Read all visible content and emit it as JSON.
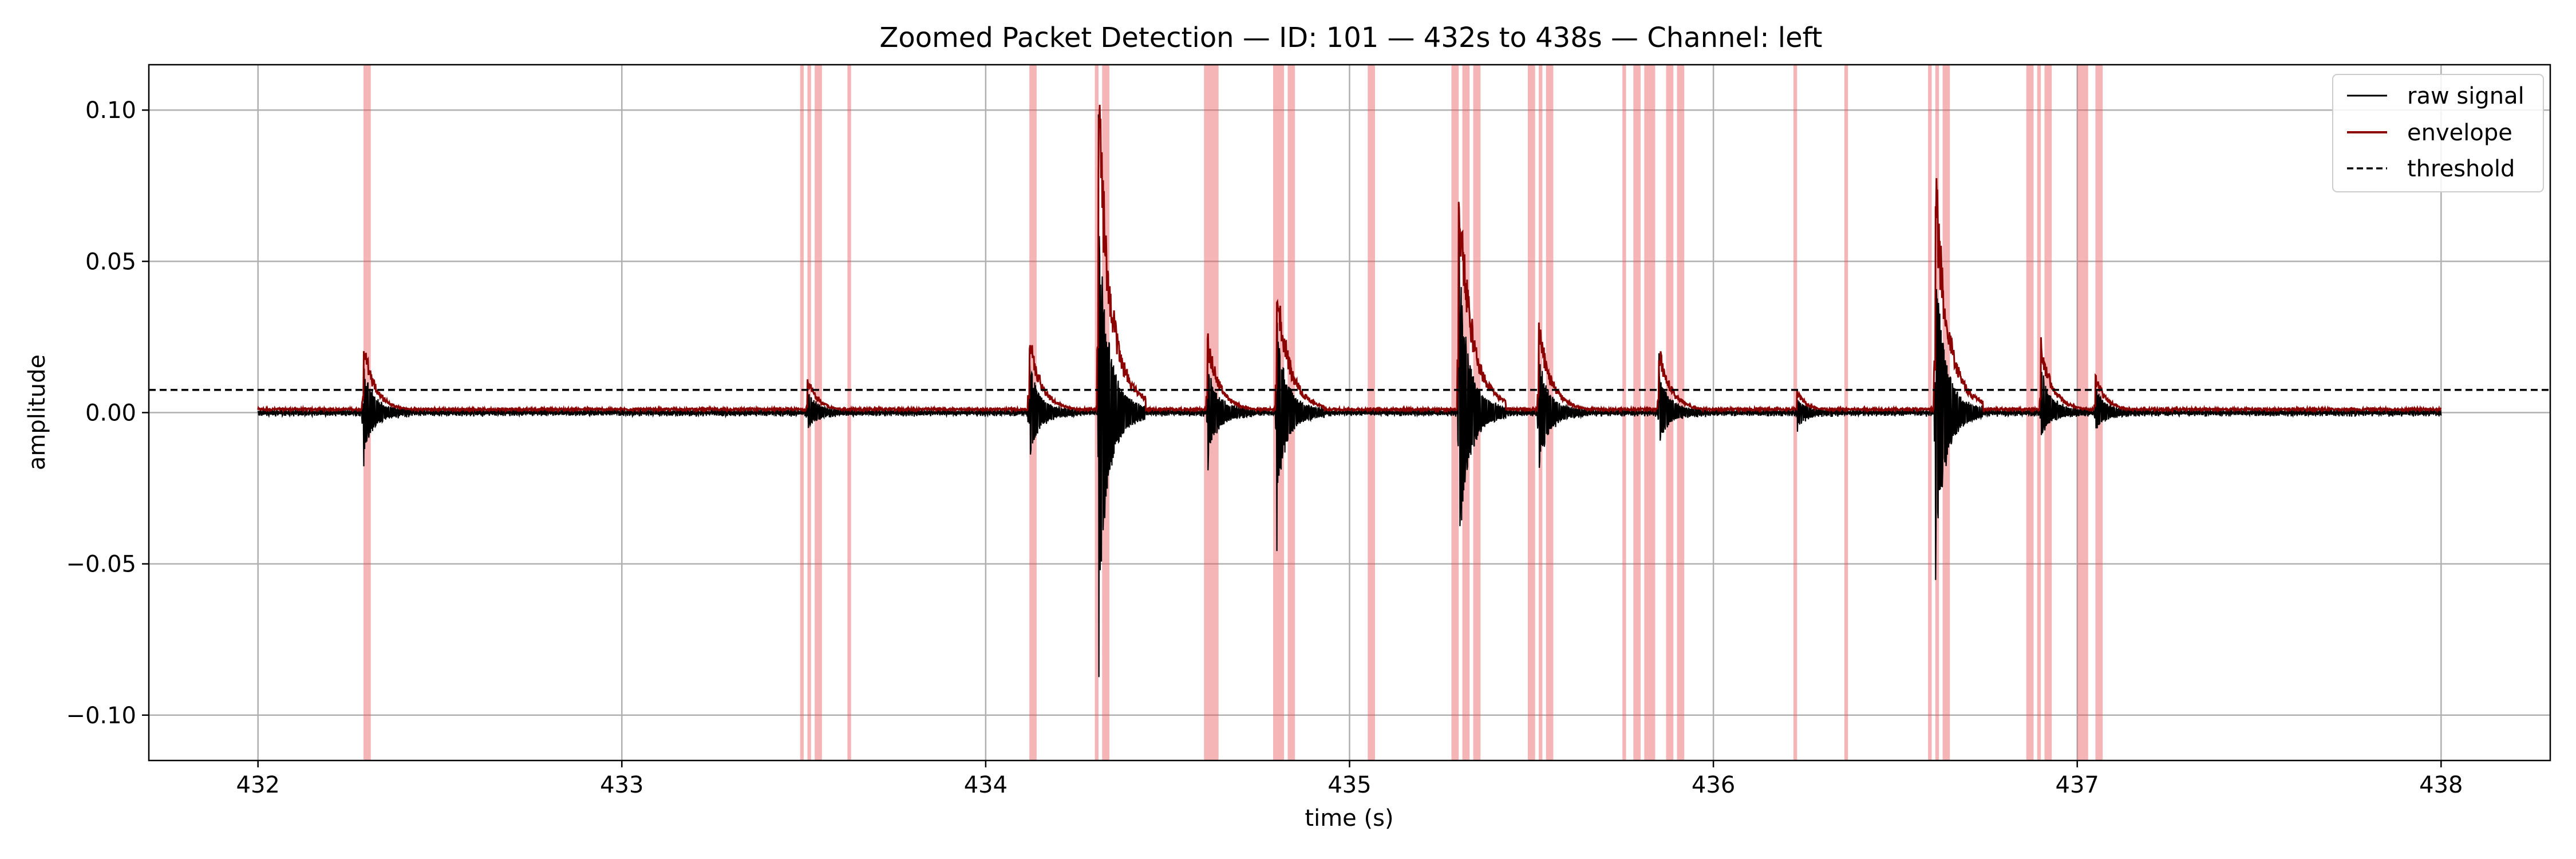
{
  "chart_data": {
    "type": "line",
    "title": "Zoomed Packet Detection — ID: 101 — 432s to 438s — Channel: left",
    "xlabel": "time (s)",
    "ylabel": "amplitude",
    "xlim": [
      431.7,
      438.3
    ],
    "ylim": [
      -0.115,
      0.115
    ],
    "xticks": [
      432,
      433,
      434,
      435,
      436,
      437,
      438
    ],
    "xtick_labels": [
      "432",
      "433",
      "434",
      "435",
      "436",
      "437",
      "438"
    ],
    "yticks": [
      0.1,
      0.05,
      0.0,
      -0.05,
      -0.1
    ],
    "ytick_labels": [
      "0.10",
      "0.05",
      "0.00",
      "−0.05",
      "−0.10"
    ],
    "grid": true,
    "legend_position": "top-right",
    "threshold": 0.0075,
    "signal_range": [
      432.0,
      438.0
    ],
    "series": [
      {
        "name": "raw signal",
        "color": "#000000",
        "style": "solid"
      },
      {
        "name": "envelope",
        "color": "#8b0000",
        "style": "solid"
      },
      {
        "name": "threshold",
        "color": "#000000",
        "style": "dashed"
      }
    ],
    "packets": [
      {
        "t": 432.29,
        "raw_max": 0.023,
        "raw_min": -0.021,
        "env_peak": 0.023
      },
      {
        "t": 433.51,
        "raw_max": 0.01,
        "raw_min": -0.008,
        "env_peak": 0.011
      },
      {
        "t": 434.12,
        "raw_max": 0.025,
        "raw_min": -0.022,
        "env_peak": 0.026
      },
      {
        "t": 434.31,
        "raw_max": 0.105,
        "raw_min": -0.104,
        "env_peak": 0.105
      },
      {
        "t": 434.61,
        "raw_max": 0.024,
        "raw_min": -0.025,
        "env_peak": 0.025
      },
      {
        "t": 434.8,
        "raw_max": 0.046,
        "raw_min": -0.045,
        "env_peak": 0.046
      },
      {
        "t": 435.3,
        "raw_max": 0.081,
        "raw_min": -0.074,
        "env_peak": 0.081
      },
      {
        "t": 435.52,
        "raw_max": 0.029,
        "raw_min": -0.029,
        "env_peak": 0.03
      },
      {
        "t": 435.85,
        "raw_max": 0.021,
        "raw_min": -0.015,
        "env_peak": 0.022
      },
      {
        "t": 436.23,
        "raw_max": 0.006,
        "raw_min": -0.006,
        "env_peak": 0.007
      },
      {
        "t": 436.61,
        "raw_max": 0.079,
        "raw_min": -0.078,
        "env_peak": 0.08
      },
      {
        "t": 436.9,
        "raw_max": 0.023,
        "raw_min": -0.012,
        "env_peak": 0.023
      },
      {
        "t": 437.05,
        "raw_max": 0.012,
        "raw_min": -0.008,
        "env_peak": 0.012
      }
    ],
    "detection_spans": [
      [
        432.29,
        432.31
      ],
      [
        433.49,
        433.5
      ],
      [
        433.51,
        433.52
      ],
      [
        433.53,
        433.55
      ],
      [
        433.62,
        433.63
      ],
      [
        434.12,
        434.14
      ],
      [
        434.3,
        434.31
      ],
      [
        434.32,
        434.34
      ],
      [
        434.6,
        434.64
      ],
      [
        434.79,
        434.8
      ],
      [
        434.8,
        434.82
      ],
      [
        434.83,
        434.85
      ],
      [
        435.05,
        435.07
      ],
      [
        435.28,
        435.3
      ],
      [
        435.31,
        435.33
      ],
      [
        435.34,
        435.36
      ],
      [
        435.49,
        435.51
      ],
      [
        435.52,
        435.53
      ],
      [
        435.54,
        435.56
      ],
      [
        435.75,
        435.76
      ],
      [
        435.78,
        435.8
      ],
      [
        435.81,
        435.84
      ],
      [
        435.87,
        435.89
      ],
      [
        435.9,
        435.92
      ],
      [
        436.22,
        436.23
      ],
      [
        436.36,
        436.37
      ],
      [
        436.59,
        436.6
      ],
      [
        436.61,
        436.62
      ],
      [
        436.63,
        436.65
      ],
      [
        436.86,
        436.88
      ],
      [
        436.89,
        436.9
      ],
      [
        436.91,
        436.93
      ],
      [
        437.0,
        437.03
      ],
      [
        437.05,
        437.07
      ]
    ],
    "colors": {
      "raw": "#000000",
      "envelope": "#8b0000",
      "threshold": "#000000",
      "span": "#e8585e",
      "grid": "#b0b0b0"
    }
  }
}
